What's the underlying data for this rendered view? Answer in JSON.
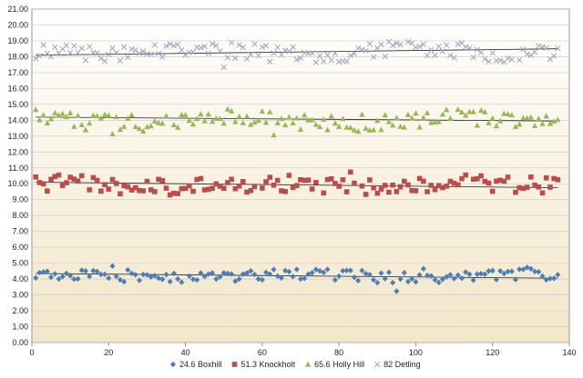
{
  "chart_data": {
    "type": "scatter",
    "title": "",
    "xlabel": "",
    "ylabel": "",
    "xlim": [
      0,
      140
    ],
    "ylim": [
      0,
      21
    ],
    "x_ticks": [
      "0",
      "20",
      "40",
      "60",
      "80",
      "100",
      "120",
      "140"
    ],
    "y_ticks": [
      "0.00",
      "1.00",
      "2.00",
      "3.00",
      "4.00",
      "5.00",
      "6.00",
      "7.00",
      "8.00",
      "9.00",
      "10.00",
      "11.00",
      "12.00",
      "13.00",
      "14.00",
      "15.00",
      "16.00",
      "17.00",
      "18.00",
      "19.00",
      "20.00",
      "21.00"
    ],
    "grid": "horizontal",
    "legend_position": "bottom",
    "series": [
      {
        "name": "24.6 Boxhill",
        "marker": "diamond",
        "color": "#4a7ebb",
        "center": 4.2,
        "amp": 0.35,
        "trend": [
          4.35,
          4.05
        ],
        "seed": 11
      },
      {
        "name": "51.3 Knockholt",
        "marker": "square",
        "color": "#be4b48",
        "center": 9.9,
        "amp": 0.55,
        "trend": [
          10.1,
          9.75
        ],
        "seed": 23
      },
      {
        "name": "65.6 Holly Hill",
        "marker": "triangle",
        "color": "#98b954",
        "center": 14.0,
        "amp": 0.55,
        "trend": [
          14.2,
          13.95
        ],
        "seed": 37
      },
      {
        "name": "82 Detling",
        "marker": "x",
        "color": "#a0a0c0",
        "center": 18.3,
        "amp": 0.55,
        "trend": [
          18.1,
          18.5
        ],
        "seed": 51
      }
    ]
  }
}
